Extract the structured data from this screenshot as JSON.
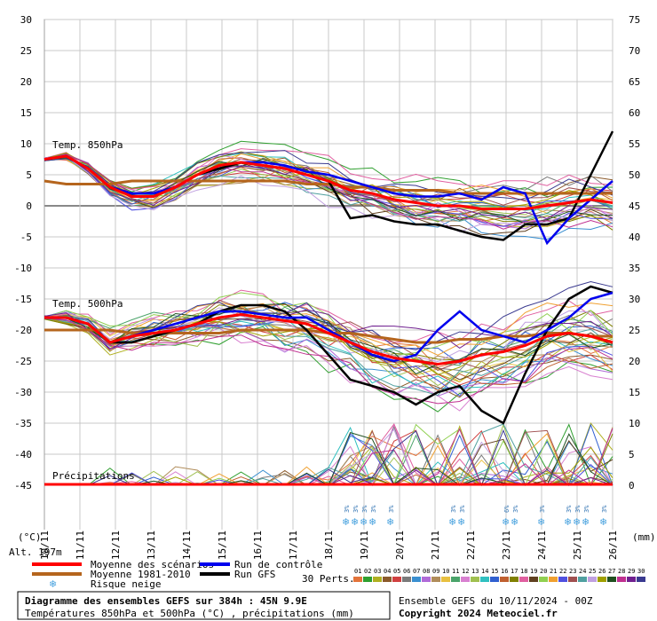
{
  "chart_data": {
    "type": "line",
    "left_axis_unit": "(°C)",
    "right_axis_unit": "(mm)",
    "left_ticks": [
      30,
      25,
      20,
      15,
      10,
      5,
      0,
      -5,
      -10,
      -15,
      -20,
      -25,
      -30,
      -35,
      -40,
      -45
    ],
    "right_ticks": [
      75,
      70,
      65,
      60,
      55,
      50,
      45,
      40,
      35,
      30,
      25,
      20,
      15,
      10,
      5,
      0
    ],
    "dates": [
      "10/11",
      "11/11",
      "12/11",
      "13/11",
      "14/11",
      "15/11",
      "16/11",
      "17/11",
      "18/11",
      "19/11",
      "20/11",
      "21/11",
      "22/11",
      "23/11",
      "24/11",
      "25/11",
      "26/11"
    ],
    "altitude": "Alt. 197m",
    "labels": {
      "t850": "Temp. 850hPa",
      "t500": "Temp. 500hPa",
      "precip": "Précipitations"
    },
    "series": [
      {
        "name": "Moyenne des scénarios",
        "color": "#ff0000",
        "t850": [
          7.5,
          8,
          6,
          3,
          1.5,
          1.5,
          3,
          5,
          6.5,
          7,
          6.5,
          6,
          5,
          4,
          2.5,
          2,
          1,
          0.5,
          0,
          0,
          -0.5,
          -0.5,
          -0.5,
          0,
          0.5,
          1,
          0.5
        ],
        "t500": [
          -18,
          -18,
          -19,
          -22,
          -21,
          -20.5,
          -20,
          -19,
          -18,
          -17.5,
          -18,
          -18.5,
          -19,
          -20.5,
          -22,
          -23.5,
          -24.5,
          -25,
          -25.5,
          -25,
          -24,
          -23.5,
          -22.5,
          -21,
          -20.5,
          -21,
          -22
        ]
      },
      {
        "name": "Moyenne 1981-2010",
        "color": "#b5651d",
        "t850": [
          4,
          3.5,
          3.5,
          3.5,
          4,
          4,
          4,
          4,
          4,
          4,
          4,
          4,
          3.5,
          3.5,
          3,
          3,
          2.5,
          2.5,
          2.5,
          2,
          2,
          2,
          2,
          2,
          2,
          2,
          2
        ],
        "t500": [
          -20,
          -20,
          -20,
          -20,
          -20.5,
          -20.5,
          -20.5,
          -20.5,
          -20.5,
          -20,
          -20,
          -20,
          -20,
          -20.5,
          -20.5,
          -21,
          -21.5,
          -22,
          -22,
          -21.5,
          -21.5,
          -21,
          -21,
          -20.5,
          -20.5,
          -21,
          -21
        ]
      },
      {
        "name": "Run de contrôle",
        "color": "#0000ee",
        "t850": [
          7.5,
          8,
          6,
          3,
          2,
          2,
          3,
          5,
          6.5,
          7,
          7,
          6.5,
          5.5,
          5,
          4,
          3,
          2,
          1.5,
          1.5,
          2,
          1,
          3,
          2,
          -6,
          -2,
          1,
          4
        ],
        "t500": [
          -18,
          -18,
          -19,
          -22,
          -21,
          -20,
          -19,
          -18,
          -17,
          -17,
          -17.5,
          -18,
          -18,
          -20,
          -22,
          -24,
          -25,
          -24,
          -20,
          -17,
          -20,
          -21,
          -22,
          -20,
          -18,
          -15,
          -14
        ]
      },
      {
        "name": "Run GFS",
        "color": "#000000",
        "t850": [
          7.5,
          8,
          6,
          3,
          2,
          2,
          3,
          5,
          6,
          7,
          6.5,
          6,
          5,
          4,
          -2,
          -1.5,
          -2.5,
          -3,
          -3,
          -4,
          -5,
          -5.5,
          -3,
          -3,
          -2,
          5,
          12
        ],
        "t500": [
          -18,
          -18,
          -19,
          -22,
          -22,
          -21,
          -20,
          -19,
          -17,
          -16,
          -16,
          -17,
          -20,
          -24,
          -28,
          -29,
          -30,
          -32,
          -30,
          -29,
          -33,
          -35,
          -27,
          -20,
          -15,
          -13,
          -14
        ]
      }
    ],
    "perturbations_label": "30 Perts.",
    "perturbation_numbers": [
      "01",
      "02",
      "03",
      "04",
      "05",
      "06",
      "07",
      "08",
      "09",
      "10",
      "11",
      "12",
      "13",
      "14",
      "15",
      "16",
      "17",
      "18",
      "19",
      "20",
      "21",
      "22",
      "23",
      "24",
      "25",
      "26",
      "27",
      "28",
      "29",
      "30"
    ],
    "perturbation_colors": [
      "#e3743b",
      "#2f9f2f",
      "#b0b020",
      "#8b5a2b",
      "#d04040",
      "#7a7a7a",
      "#3a8fd0",
      "#b06ad8",
      "#b08c5a",
      "#e8c040",
      "#4aa36a",
      "#d880d0",
      "#a0c050",
      "#30c0c0",
      "#3060d0",
      "#c06030",
      "#808000",
      "#e060a0",
      "#604020",
      "#90d050",
      "#f0a030",
      "#5050e0",
      "#a05050",
      "#50a0a0",
      "#c0a0e0",
      "#a0a000",
      "#205020",
      "#c03090",
      "#702090",
      "#3a3a90"
    ],
    "snow_events": [
      {
        "x": 18.5,
        "pct": "3%"
      },
      {
        "x": 18.75,
        "pct": "3%"
      },
      {
        "x": 19.0,
        "pct": "3%"
      },
      {
        "x": 19.25,
        "pct": "3%"
      },
      {
        "x": 19.75,
        "pct": "3%"
      },
      {
        "x": 21.5,
        "pct": "3%"
      },
      {
        "x": 21.75,
        "pct": "3%"
      },
      {
        "x": 23.0,
        "pct": "6%"
      },
      {
        "x": 23.25,
        "pct": "3%"
      },
      {
        "x": 24.0,
        "pct": "3%"
      },
      {
        "x": 24.75,
        "pct": "3%"
      },
      {
        "x": 25.0,
        "pct": "3%"
      },
      {
        "x": 25.25,
        "pct": "3%"
      },
      {
        "x": 25.75,
        "pct": "3%"
      }
    ]
  },
  "legend": {
    "mean": "Moyenne des scénarios",
    "clim": "Moyenne 1981-2010",
    "snow": "Risque neige",
    "control": "Run de contrôle",
    "gfs": "Run GFS"
  },
  "footer": {
    "title": "Diagramme des ensembles GEFS sur 384h : 45N 9.9E",
    "subtitle": "Températures 850hPa et 500hPa (°C) , précipitations (mm)",
    "ensemble": "Ensemble GEFS du 10/11/2024 - 00Z",
    "copyright": "Copyright 2024 Meteociel.fr"
  },
  "colors": {
    "mean": "#ff0000",
    "clim": "#b5651d",
    "control": "#0000ee",
    "gfs": "#000000",
    "grid": "#a0a0a0",
    "snow": "#4aa3df"
  }
}
